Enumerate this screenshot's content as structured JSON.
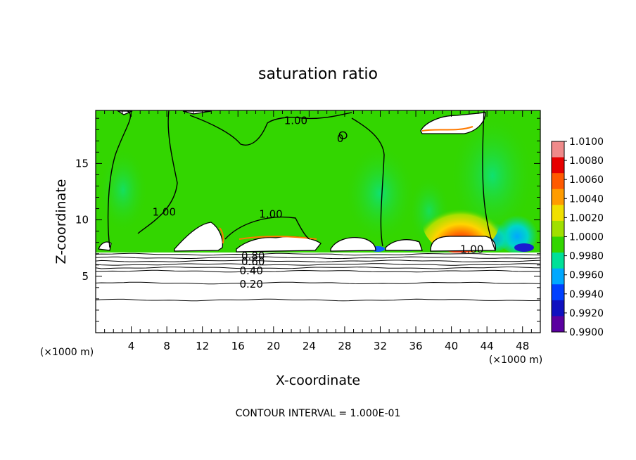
{
  "chart_data": {
    "type": "heatmap",
    "title": "saturation ratio",
    "xlabel": "X-coordinate",
    "ylabel": "Z-coordinate",
    "x_unit": "(×1000 m)",
    "x_unit_right": "(×1000 m)",
    "xlim": [
      0,
      50
    ],
    "ylim": [
      0,
      19.7
    ],
    "x_ticks": [
      4,
      8,
      12,
      16,
      20,
      24,
      28,
      32,
      36,
      40,
      44,
      48
    ],
    "y_ticks": [
      5,
      10,
      15
    ],
    "footer": "CONTOUR INTERVAL = 1.000E-01",
    "colorbar": {
      "labels": [
        "1.0100",
        "1.0080",
        "1.0060",
        "1.0040",
        "1.0020",
        "1.0000",
        "0.9980",
        "0.9960",
        "0.9940",
        "0.9920",
        "0.9900"
      ],
      "colors": [
        "#ef8a8a",
        "#e60000",
        "#ff5a00",
        "#ff9c00",
        "#f0e000",
        "#a0e000",
        "#33d600",
        "#00e098",
        "#00a8ff",
        "#0040ff",
        "#1010c0",
        "#5a00a0"
      ]
    },
    "contour_labels": [
      {
        "text": "1.00",
        "x": 22.5,
        "z": 18.8
      },
      {
        "text": "0",
        "x": 27.5,
        "z": 17.2
      },
      {
        "text": "1.00",
        "x": 7.7,
        "z": 10.7
      },
      {
        "text": "1.00",
        "x": 19.7,
        "z": 10.5
      },
      {
        "text": "1.00",
        "x": 42.3,
        "z": 7.4
      },
      {
        "text": "0.80",
        "x": 17.7,
        "z": 6.8
      },
      {
        "text": "0.60",
        "x": 17.7,
        "z": 6.3
      },
      {
        "text": "0.40",
        "x": 17.5,
        "z": 5.5
      },
      {
        "text": "0.20",
        "x": 17.5,
        "z": 4.3
      }
    ],
    "boundary_layer_contours": [
      6.95,
      6.65,
      6.35,
      6.05,
      5.75,
      5.45,
      4.4,
      2.9
    ],
    "field_description_levels": {
      "background": 1.0,
      "min_shown": 0.99,
      "max_shown": 1.01
    }
  }
}
